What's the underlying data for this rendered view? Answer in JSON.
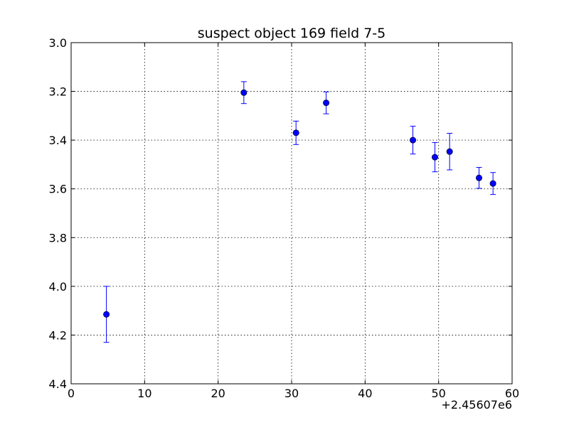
{
  "chart_data": {
    "type": "scatter",
    "title": "suspect object 169 field 7-5",
    "xlabel": "",
    "ylabel": "",
    "x_offset_label": "+2.45607e6",
    "xlim": [
      0,
      60
    ],
    "ylim": [
      4.4,
      3.0
    ],
    "y_inverted": true,
    "x_ticks": [
      0,
      10,
      20,
      30,
      40,
      50,
      60
    ],
    "x_tick_labels": [
      "0",
      "10",
      "20",
      "30",
      "40",
      "50",
      "60"
    ],
    "y_ticks": [
      3.0,
      3.2,
      3.4,
      3.6,
      3.8,
      4.0,
      4.2,
      4.4
    ],
    "y_tick_labels": [
      "3.0",
      "3.2",
      "3.4",
      "3.6",
      "3.8",
      "4.0",
      "4.2",
      "4.4"
    ],
    "grid": true,
    "series": [
      {
        "color": "#0000ff",
        "marker": "circle",
        "points": [
          {
            "x": 4.8,
            "y": 4.115,
            "err": 0.115
          },
          {
            "x": 23.5,
            "y": 3.205,
            "err": 0.045
          },
          {
            "x": 30.6,
            "y": 3.37,
            "err": 0.048
          },
          {
            "x": 34.7,
            "y": 3.247,
            "err": 0.045
          },
          {
            "x": 46.5,
            "y": 3.4,
            "err": 0.057
          },
          {
            "x": 49.5,
            "y": 3.47,
            "err": 0.06
          },
          {
            "x": 51.5,
            "y": 3.447,
            "err": 0.075
          },
          {
            "x": 55.5,
            "y": 3.555,
            "err": 0.043
          },
          {
            "x": 57.4,
            "y": 3.578,
            "err": 0.045
          }
        ]
      }
    ]
  }
}
